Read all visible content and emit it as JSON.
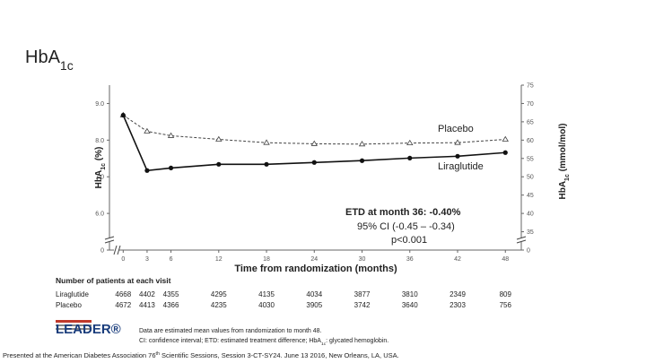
{
  "slide_title": [
    "HbA",
    "1c"
  ],
  "logo": "LEADER®",
  "footnotes": [
    [
      "Data are estimated mean values from randomization to month 48."
    ],
    [
      "CI: confidence interval; ETD: estimated treatment difference; HbA",
      "1c",
      ": glycated hemoglobin."
    ]
  ],
  "footer": [
    "Presented at the American Diabetes Association 76",
    "th",
    " Scientific Sessions, Session 3-CT-SY24. June 13 2016, New Orleans, LA, USA."
  ],
  "chart_data": {
    "type": "line",
    "xlabel": "Time from randomization (months)",
    "ylabel": [
      "HbA",
      "1c",
      " (%)"
    ],
    "y2label": [
      "HbA",
      "1c",
      " (mmol/mol)"
    ],
    "x": [
      0,
      3,
      6,
      12,
      18,
      24,
      30,
      36,
      42,
      48
    ],
    "xlim": [
      -1.5,
      50
    ],
    "xticks": [
      0,
      3,
      6,
      12,
      18,
      24,
      30,
      36,
      42,
      48
    ],
    "ylim": [
      5,
      9.5
    ],
    "yticks": [
      0,
      {
        "value": 6,
        "label": "6.0"
      },
      {
        "value": 7,
        "label": "7.0"
      },
      {
        "value": 8,
        "label": "8.0"
      },
      {
        "value": 9,
        "label": "9.0"
      }
    ],
    "y2lim": [
      30,
      75
    ],
    "y2ticks": [
      0,
      35,
      40,
      45,
      50,
      55,
      60,
      65,
      70,
      75
    ],
    "axis_break": true,
    "series": [
      {
        "name": "Placebo",
        "color": "#444444",
        "dashed": true,
        "marker": "triangle",
        "values": [
          8.68,
          8.24,
          8.12,
          8.02,
          7.93,
          7.9,
          7.89,
          7.92,
          7.93,
          8.02
        ]
      },
      {
        "name": "Liraglutide",
        "color": "#111111",
        "dashed": false,
        "marker": "circle",
        "values": [
          8.68,
          7.17,
          7.24,
          7.34,
          7.34,
          7.39,
          7.44,
          7.51,
          7.56,
          7.66
        ]
      }
    ],
    "annotations": [
      "ETD at month 36: -0.40%",
      "95% CI (-0.45 – -0.34)",
      "p<0.001"
    ],
    "at_risk": {
      "title": "Number of patients at each visit",
      "rows": [
        {
          "name": "Liraglutide",
          "values": [
            "4668",
            "4402",
            "4355",
            "4295",
            "4135",
            "4034",
            "3877",
            "3810",
            "2349",
            "809"
          ]
        },
        {
          "name": "Placebo",
          "values": [
            "4672",
            "4413",
            "4366",
            "4235",
            "4030",
            "3905",
            "3742",
            "3640",
            "2303",
            "756"
          ]
        }
      ]
    }
  }
}
